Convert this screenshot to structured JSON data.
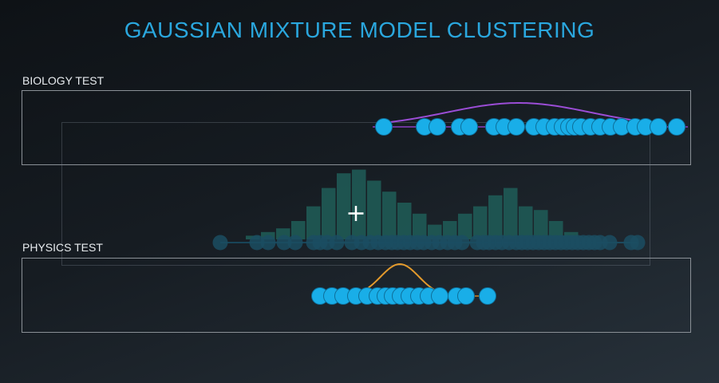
{
  "title": "GAUSSIAN MIXTURE MODEL CLUSTERING",
  "biology": {
    "label": "BIOLOGY TEST",
    "curve_color": "#9b4dd6",
    "points": [
      481,
      532,
      548,
      576,
      588,
      619,
      632,
      647,
      669,
      682,
      695,
      705,
      713,
      720,
      728,
      740,
      752,
      765,
      779,
      796,
      809,
      825,
      848
    ]
  },
  "physics": {
    "label": "PHYSICS TEST",
    "curve_color": "#e39a2c",
    "points": [
      401,
      416,
      430,
      446,
      460,
      473,
      483,
      492,
      502,
      513,
      525,
      537,
      551,
      572,
      584,
      611
    ]
  },
  "histogram": {
    "bar_color": "#1f5a55",
    "counts": [
      1,
      2,
      3,
      5,
      9,
      14,
      18,
      19,
      16,
      13,
      10,
      7,
      4,
      5,
      7,
      9,
      12,
      14,
      9,
      8,
      5,
      2
    ]
  },
  "combined_points": [
    276,
    322,
    336,
    356,
    370,
    393,
    401,
    410,
    422,
    441,
    453,
    464,
    474,
    483,
    491,
    498,
    506,
    514,
    523,
    531,
    541,
    551,
    561,
    570,
    579,
    598,
    606,
    613,
    621,
    629,
    638,
    647,
    654,
    661,
    668,
    675,
    682,
    689,
    696,
    703,
    710,
    717,
    724,
    731,
    738,
    745,
    752,
    764,
    791,
    799
  ],
  "point_color": "#19aee8",
  "accent_color": "#2aa7de",
  "cursor": "crosshair-icon"
}
